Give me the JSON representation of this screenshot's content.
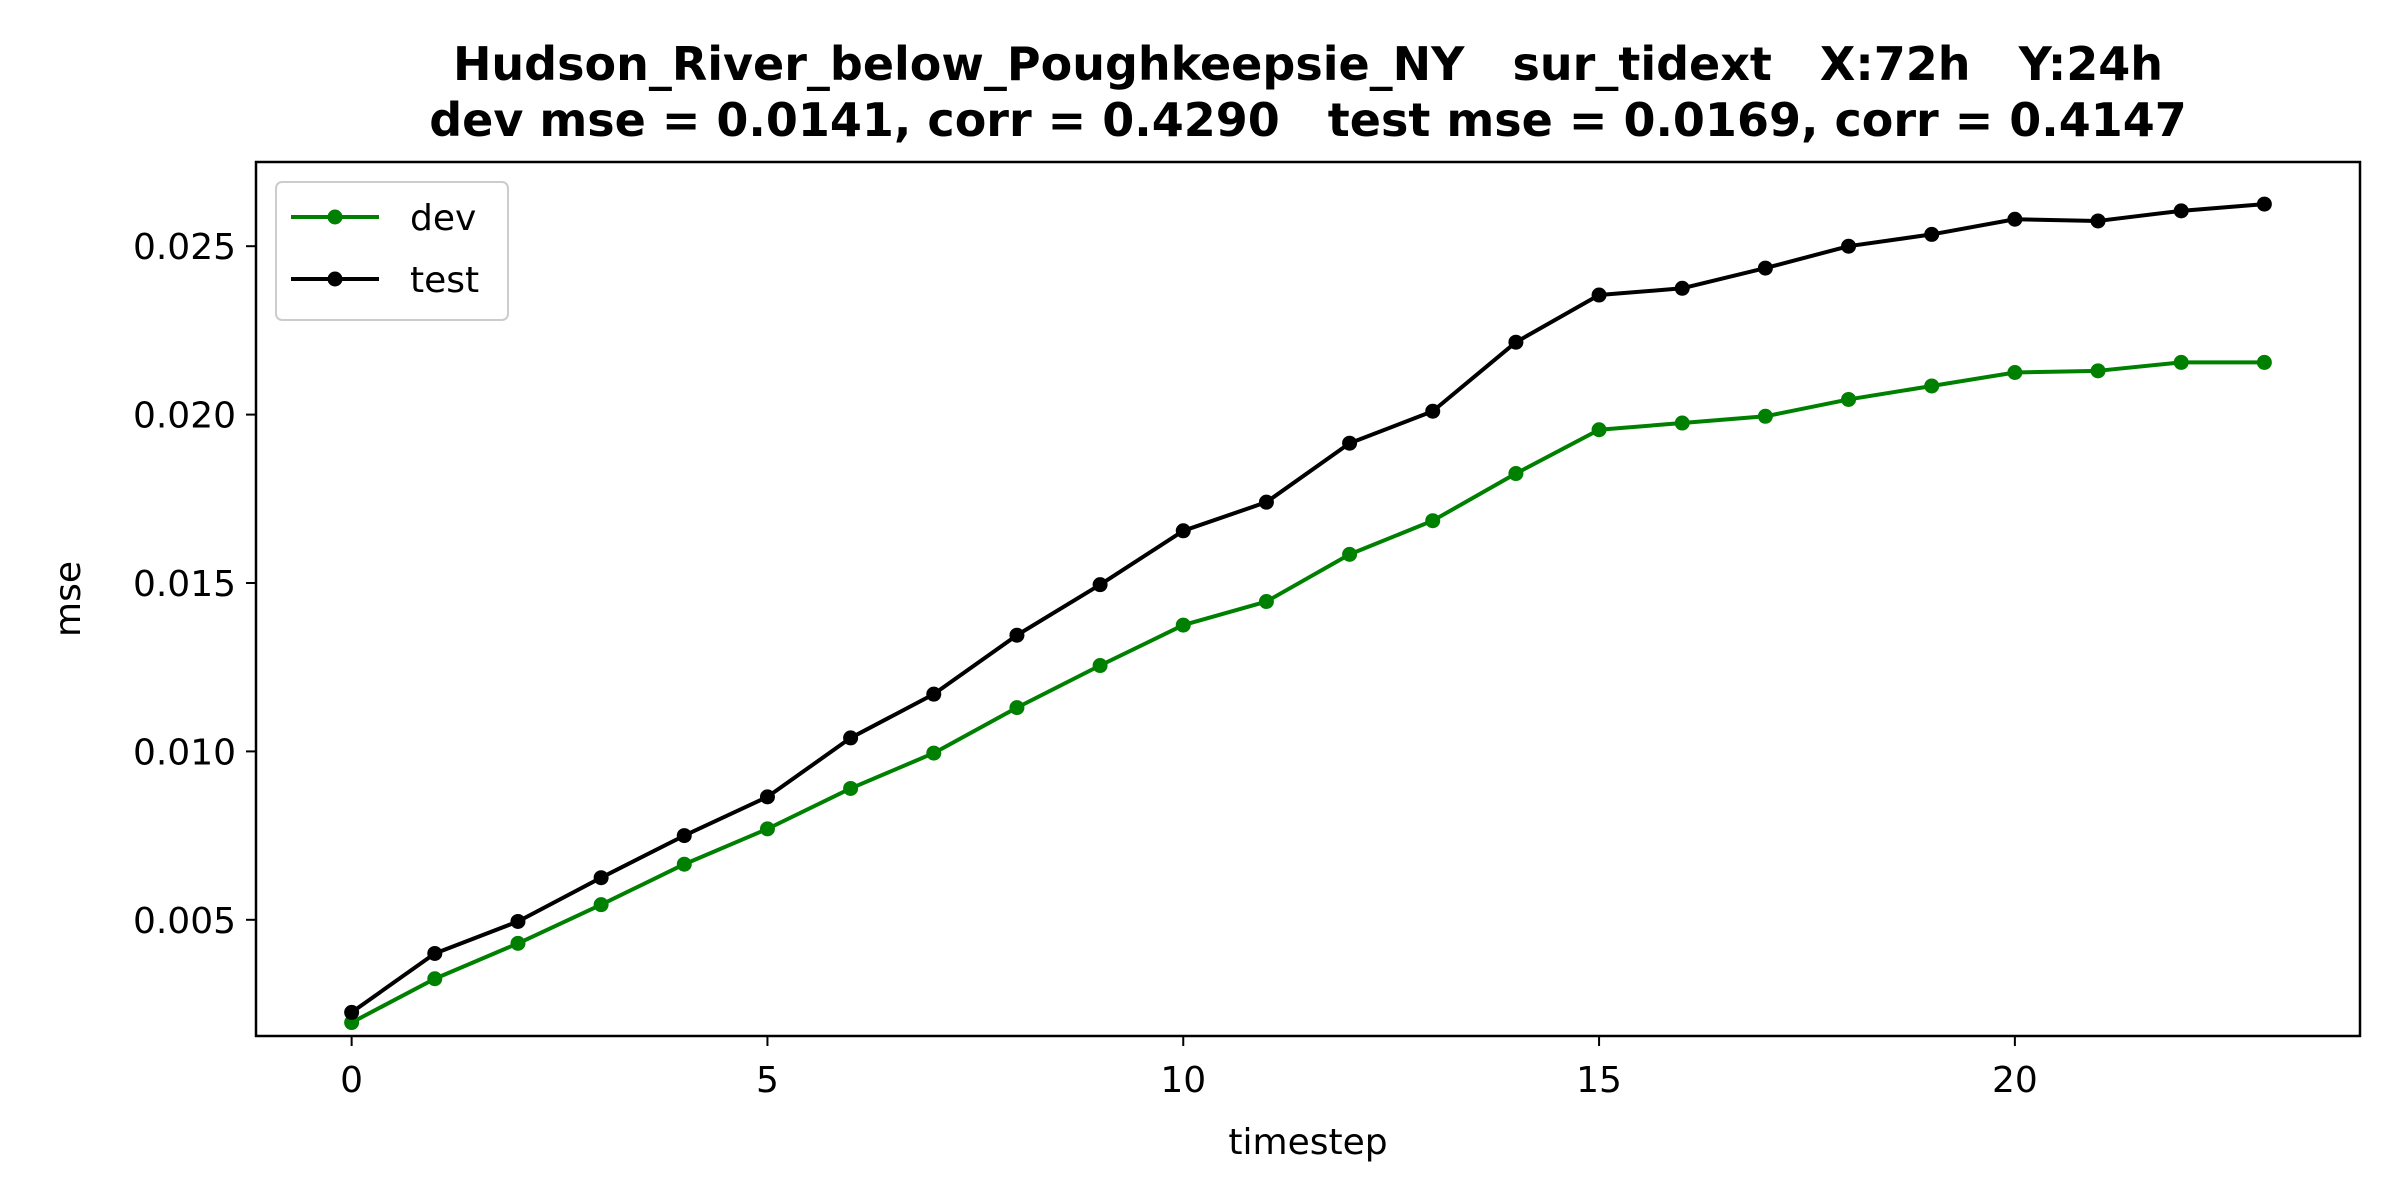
{
  "chart_data": {
    "type": "line",
    "title_line1": "Hudson_River_below_Poughkeepsie_NY   sur_tidext   X:72h   Y:24h",
    "title_line2": "dev mse = 0.0141, corr = 0.4290   test mse = 0.0169, corr = 0.4147",
    "xlabel": "timestep",
    "ylabel": "mse",
    "xlim": [
      -1.15,
      24.15
    ],
    "ylim": [
      0.00155,
      0.0275
    ],
    "xticks": [
      0,
      5,
      10,
      15,
      20
    ],
    "xtick_labels": [
      "0",
      "5",
      "10",
      "15",
      "20"
    ],
    "yticks": [
      0.005,
      0.01,
      0.015,
      0.02,
      0.025
    ],
    "ytick_labels": [
      "0.005",
      "0.010",
      "0.015",
      "0.020",
      "0.025"
    ],
    "grid": false,
    "legend_position": "top-left",
    "x": [
      0,
      1,
      2,
      3,
      4,
      5,
      6,
      7,
      8,
      9,
      10,
      11,
      12,
      13,
      14,
      15,
      16,
      17,
      18,
      19,
      20,
      21,
      22,
      23
    ],
    "series": [
      {
        "name": "dev",
        "color": "#008000",
        "values": [
          0.00195,
          0.00325,
          0.0043,
          0.00545,
          0.00665,
          0.0077,
          0.0089,
          0.00995,
          0.0113,
          0.01255,
          0.01375,
          0.01445,
          0.01585,
          0.01685,
          0.01825,
          0.01955,
          0.01975,
          0.01995,
          0.02045,
          0.02085,
          0.02125,
          0.0213,
          0.02155,
          0.02155
        ]
      },
      {
        "name": "test",
        "color": "#000000",
        "values": [
          0.00225,
          0.004,
          0.00495,
          0.00625,
          0.0075,
          0.00865,
          0.0104,
          0.0117,
          0.01345,
          0.01495,
          0.01655,
          0.0174,
          0.01915,
          0.0201,
          0.02215,
          0.02355,
          0.02375,
          0.02435,
          0.025,
          0.02535,
          0.0258,
          0.02575,
          0.02605,
          0.02625
        ]
      }
    ]
  }
}
